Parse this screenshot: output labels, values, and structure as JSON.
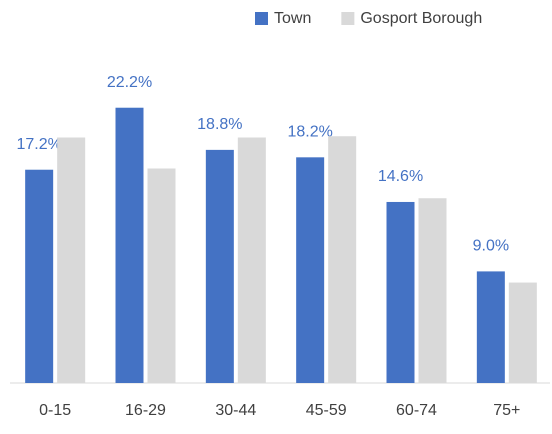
{
  "chart_data": {
    "type": "bar",
    "categories": [
      "0-15",
      "16-29",
      "30-44",
      "45-59",
      "60-74",
      "75+"
    ],
    "series": [
      {
        "name": "Town",
        "color": "#4472c4",
        "values": [
          17.2,
          22.2,
          18.8,
          18.2,
          14.6,
          9.0
        ],
        "value_labels": [
          "17.2%",
          "22.2%",
          "18.8%",
          "18.2%",
          "14.6%",
          "9.0%"
        ]
      },
      {
        "name": "Gosport Borough",
        "color": "#d9d9d9",
        "values": [
          19.8,
          17.3,
          19.8,
          19.9,
          14.9,
          8.1
        ]
      }
    ],
    "ylim": [
      0,
      25
    ],
    "legend": "top"
  }
}
